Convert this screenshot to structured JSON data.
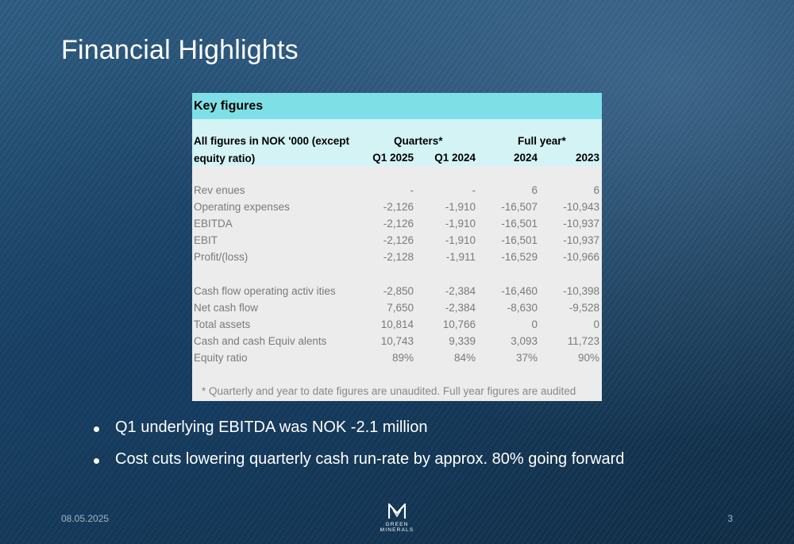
{
  "slide": {
    "title": "Financial Highlights",
    "date": "08.05.2025",
    "page_number": "3",
    "logo_text": "GREEN MINERALS"
  },
  "table": {
    "header": "Key figures",
    "label_line1": "All figures in NOK '000 (except",
    "label_line2": "equity ratio)",
    "group_quarters": "Quarters*",
    "group_fullyear": "Full year*",
    "columns": [
      "Q1 2025",
      "Q1 2024",
      "2024",
      "2023"
    ],
    "rows": [
      {
        "label": "Rev enues",
        "values": [
          "-",
          "-",
          "6",
          "6"
        ]
      },
      {
        "label": "Operating expenses",
        "values": [
          "-2,126",
          "-1,910",
          "-16,507",
          "-10,943"
        ]
      },
      {
        "label": "EBITDA",
        "values": [
          "-2,126",
          "-1,910",
          "-16,501",
          "-10,937"
        ]
      },
      {
        "label": "EBIT",
        "values": [
          "-2,126",
          "-1,910",
          "-16,501",
          "-10,937"
        ]
      },
      {
        "label": "Profit/(loss)",
        "values": [
          "-2,128",
          "-1,911",
          "-16,529",
          "-10,966"
        ]
      },
      {
        "label": "Cash flow operating activ ities",
        "values": [
          "-2,850",
          "-2,384",
          "-16,460",
          "-10,398"
        ]
      },
      {
        "label": "Net cash flow",
        "values": [
          "7,650",
          "-2,384",
          "-8,630",
          "-9,528"
        ]
      },
      {
        "label": "Total assets",
        "values": [
          "10,814",
          "10,766",
          "0",
          "0"
        ]
      },
      {
        "label": "Cash and cash Equiv alents",
        "values": [
          "10,743",
          "9,339",
          "3,093",
          "11,723"
        ]
      },
      {
        "label": "Equity ratio",
        "values": [
          "89%",
          "84%",
          "37%",
          "90%"
        ]
      }
    ],
    "footnote": "* Quarterly and year to date figures are unaudited. Full year figures are audited"
  },
  "bullets": [
    "Q1 underlying EBITDA was NOK -2.1 million",
    "Cost cuts lowering quarterly cash run-rate by approx. 80% going forward"
  ],
  "colors": {
    "header_fill": "#7ee0e6",
    "colhead_fill": "#d3f3f5",
    "table_fill": "#ececec"
  }
}
